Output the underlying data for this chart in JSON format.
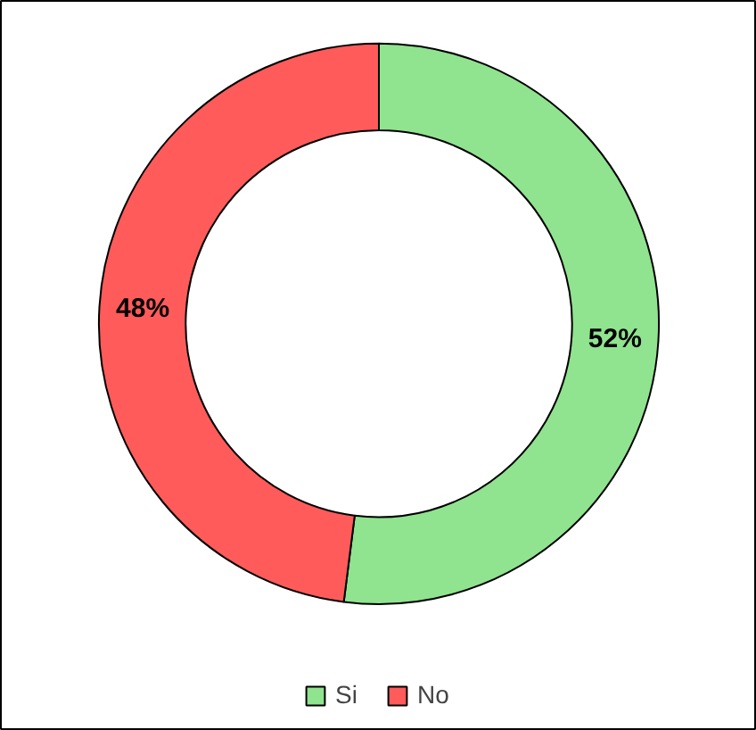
{
  "chart_data": {
    "type": "donut",
    "categories": [
      "Si",
      "No"
    ],
    "values": [
      52,
      48
    ],
    "colors": [
      "#90e38f",
      "#ff5b5b"
    ],
    "value_labels": [
      "52%",
      "48%"
    ],
    "legend": "bottom"
  }
}
